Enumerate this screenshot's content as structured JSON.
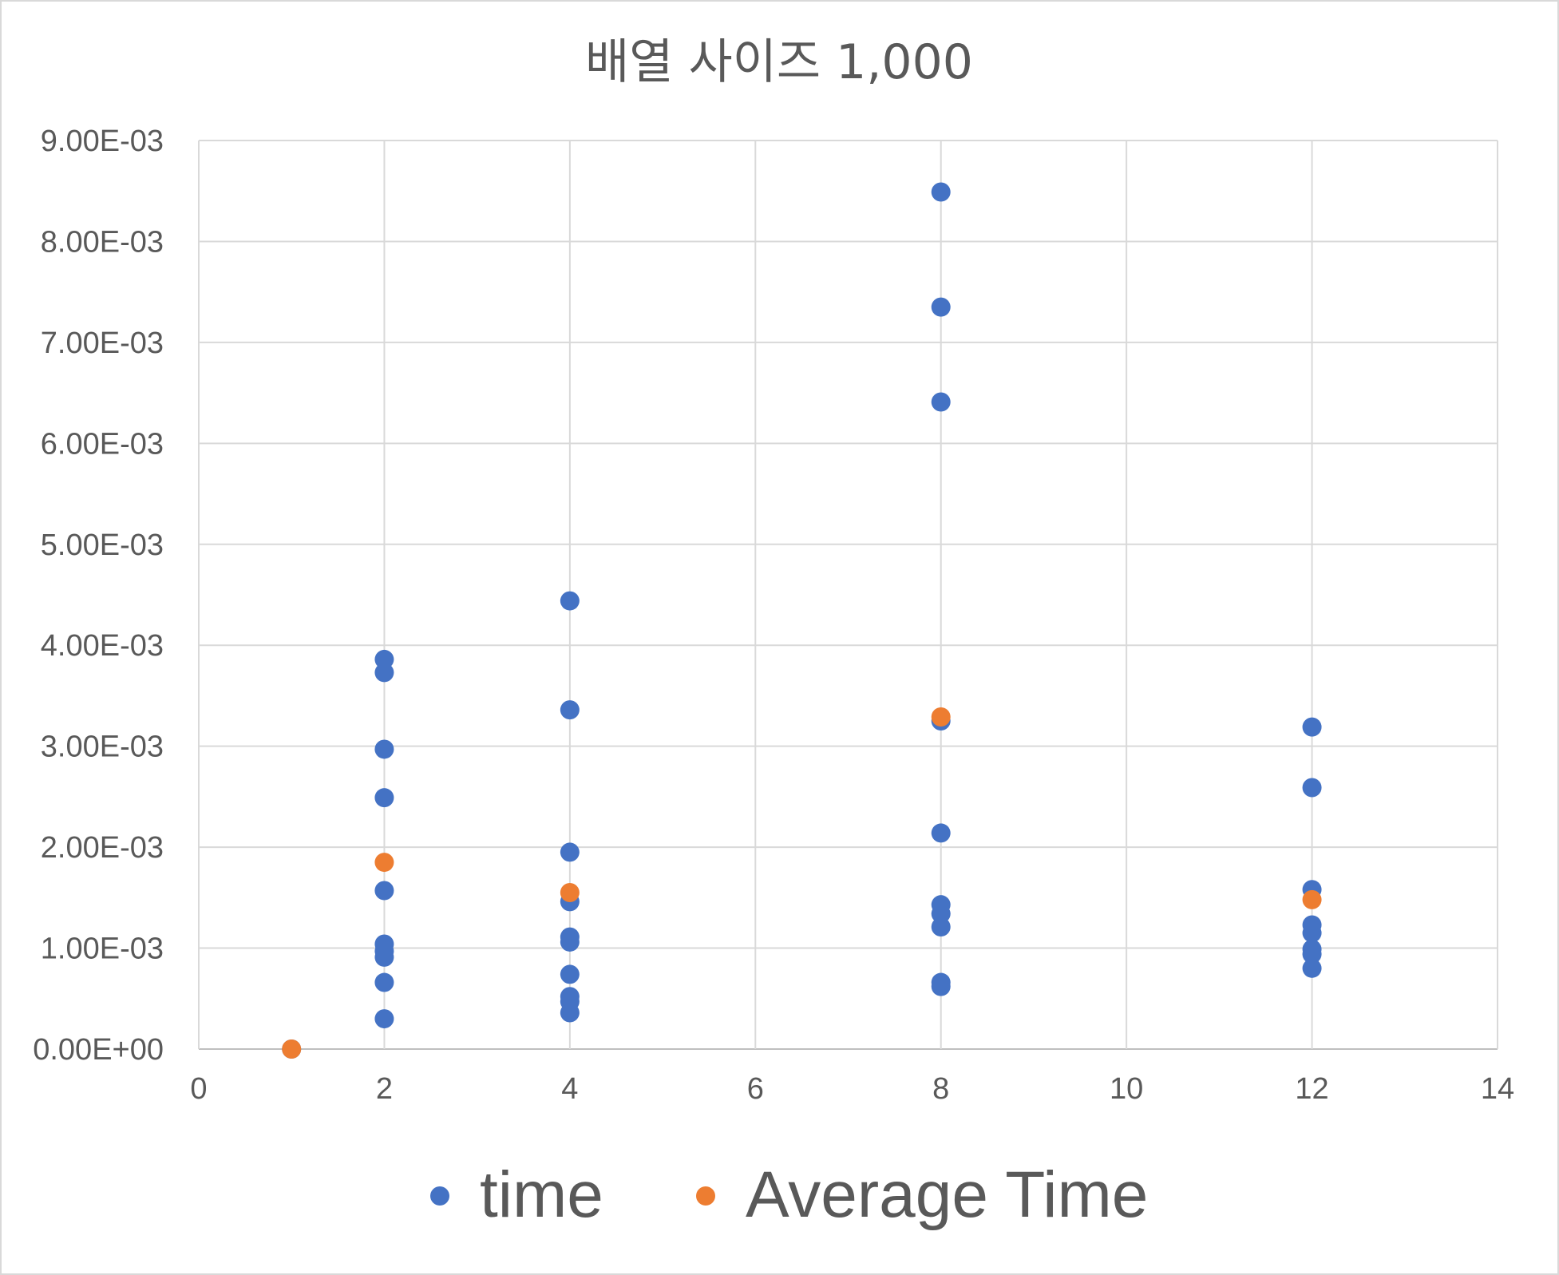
{
  "chart_data": {
    "type": "scatter",
    "title": "배열 사이즈 1,000",
    "xlabel": "",
    "ylabel": "",
    "xlim": [
      0,
      14
    ],
    "ylim": [
      0,
      0.009
    ],
    "x_ticks": [
      0,
      2,
      4,
      6,
      8,
      10,
      12,
      14
    ],
    "x_tick_labels": [
      "0",
      "2",
      "4",
      "6",
      "8",
      "10",
      "12",
      "14"
    ],
    "y_ticks": [
      0,
      0.001,
      0.002,
      0.003,
      0.004,
      0.005,
      0.006,
      0.007,
      0.008,
      0.009
    ],
    "y_tick_labels": [
      "0.00E+00",
      "1.00E-03",
      "2.00E-03",
      "3.00E-03",
      "4.00E-03",
      "5.00E-03",
      "6.00E-03",
      "7.00E-03",
      "8.00E-03",
      "9.00E-03"
    ],
    "grid": true,
    "legend_position": "bottom",
    "series": [
      {
        "name": "time",
        "color": "#4472c4",
        "points": [
          {
            "x": 1,
            "y": 0.0
          },
          {
            "x": 2,
            "y": 0.00386
          },
          {
            "x": 2,
            "y": 0.00373
          },
          {
            "x": 2,
            "y": 0.00297
          },
          {
            "x": 2,
            "y": 0.00249
          },
          {
            "x": 2,
            "y": 0.00157
          },
          {
            "x": 2,
            "y": 0.00104
          },
          {
            "x": 2,
            "y": 0.00097
          },
          {
            "x": 2,
            "y": 0.00091
          },
          {
            "x": 2,
            "y": 0.00066
          },
          {
            "x": 2,
            "y": 0.0003
          },
          {
            "x": 4,
            "y": 0.00444
          },
          {
            "x": 4,
            "y": 0.00336
          },
          {
            "x": 4,
            "y": 0.00195
          },
          {
            "x": 4,
            "y": 0.00146
          },
          {
            "x": 4,
            "y": 0.00111
          },
          {
            "x": 4,
            "y": 0.00106
          },
          {
            "x": 4,
            "y": 0.00074
          },
          {
            "x": 4,
            "y": 0.00052
          },
          {
            "x": 4,
            "y": 0.00047
          },
          {
            "x": 4,
            "y": 0.00036
          },
          {
            "x": 8,
            "y": 0.00849
          },
          {
            "x": 8,
            "y": 0.00735
          },
          {
            "x": 8,
            "y": 0.00641
          },
          {
            "x": 8,
            "y": 0.00325
          },
          {
            "x": 8,
            "y": 0.00214
          },
          {
            "x": 8,
            "y": 0.00143
          },
          {
            "x": 8,
            "y": 0.00134
          },
          {
            "x": 8,
            "y": 0.00121
          },
          {
            "x": 8,
            "y": 0.00066
          },
          {
            "x": 8,
            "y": 0.00062
          },
          {
            "x": 12,
            "y": 0.00319
          },
          {
            "x": 12,
            "y": 0.00259
          },
          {
            "x": 12,
            "y": 0.00158
          },
          {
            "x": 12,
            "y": 0.00123
          },
          {
            "x": 12,
            "y": 0.00115
          },
          {
            "x": 12,
            "y": 0.00099
          },
          {
            "x": 12,
            "y": 0.00094
          },
          {
            "x": 12,
            "y": 0.0008
          }
        ]
      },
      {
        "name": "Average Time",
        "color": "#ed7d31",
        "points": [
          {
            "x": 1,
            "y": 0.0
          },
          {
            "x": 2,
            "y": 0.00185
          },
          {
            "x": 4,
            "y": 0.00155
          },
          {
            "x": 8,
            "y": 0.00329
          },
          {
            "x": 12,
            "y": 0.00148
          }
        ]
      }
    ]
  }
}
